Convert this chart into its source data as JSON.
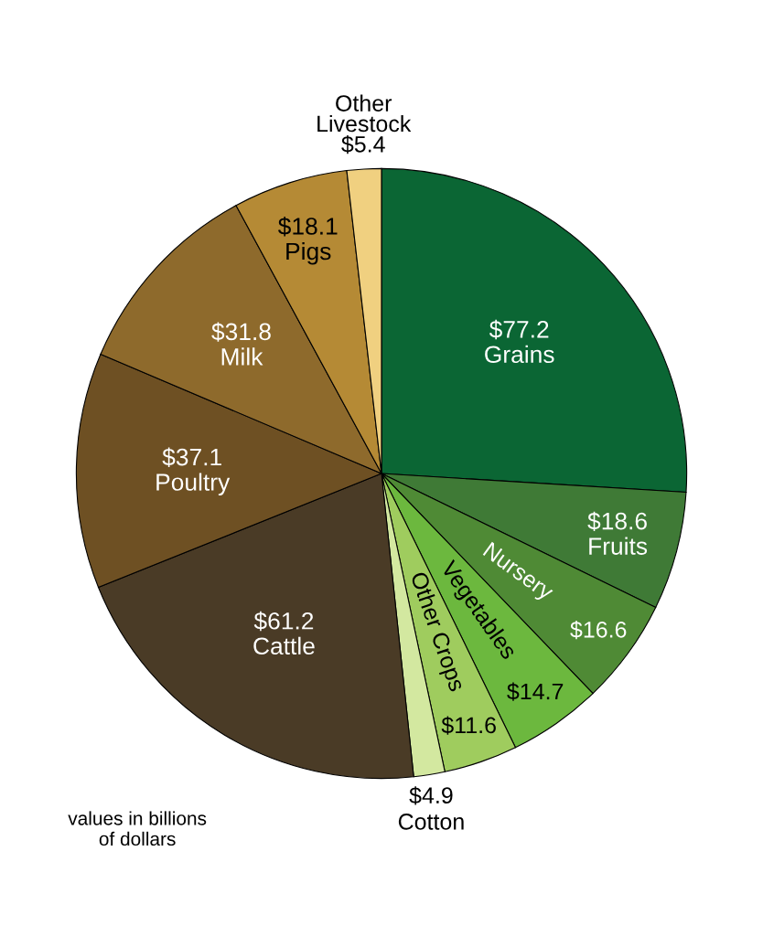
{
  "chart_data": {
    "type": "pie",
    "categories": [
      "Grains",
      "Fruits",
      "Nursery",
      "Vegetables",
      "Other Crops",
      "Cotton",
      "Cattle",
      "Poultry",
      "Milk",
      "Pigs",
      "Other\nLivestock"
    ],
    "values": [
      77.2,
      18.6,
      16.6,
      14.7,
      11.6,
      4.9,
      61.2,
      37.1,
      31.8,
      18.1,
      5.4
    ],
    "value_labels": [
      "$77.2",
      "$18.6",
      "$16.6",
      "$14.7",
      "$11.6",
      "$4.9",
      "$61.2",
      "$37.1",
      "$31.8",
      "$18.1",
      "$5.4"
    ],
    "colors": [
      "#0b6634",
      "#3f7a36",
      "#4f8a35",
      "#6cb83e",
      "#9fcc5e",
      "#d3e8a0",
      "#4a3b26",
      "#6e5023",
      "#8e6a2c",
      "#b58a35",
      "#f0d080"
    ],
    "annotations": [
      "values in billions\nof dollars"
    ]
  }
}
